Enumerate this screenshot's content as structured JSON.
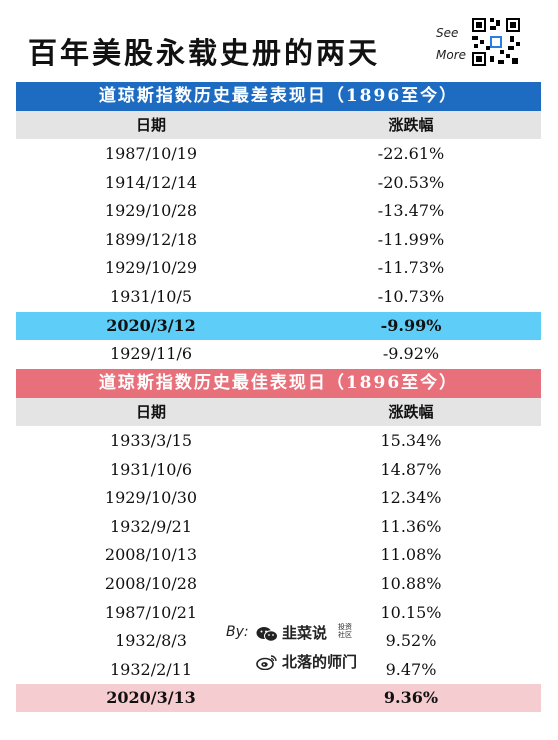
{
  "title": "百年美股永载史册的两天",
  "see_more": {
    "line1": "See",
    "line2": "More"
  },
  "worst": {
    "header": "道琼斯指数历史最差表现日（1896至今）",
    "col_date": "日期",
    "col_change": "涨跌幅",
    "rows": [
      {
        "date": "1987/10/19",
        "change": "-22.61%"
      },
      {
        "date": "1914/12/14",
        "change": "-20.53%"
      },
      {
        "date": "1929/10/28",
        "change": "-13.47%"
      },
      {
        "date": "1899/12/18",
        "change": "-11.99%"
      },
      {
        "date": "1929/10/29",
        "change": "-11.73%"
      },
      {
        "date": "1931/10/5",
        "change": "-10.73%"
      },
      {
        "date": "2020/3/12",
        "change": "-9.99%",
        "highlight": true
      },
      {
        "date": "1929/11/6",
        "change": "-9.92%"
      }
    ],
    "color": "#1d6cc2",
    "highlight_color": "#5ecdf7"
  },
  "best": {
    "header": "道琼斯指数历史最佳表现日（1896至今）",
    "col_date": "日期",
    "col_change": "涨跌幅",
    "rows": [
      {
        "date": "1933/3/15",
        "change": "15.34%"
      },
      {
        "date": "1931/10/6",
        "change": "14.87%"
      },
      {
        "date": "1929/10/30",
        "change": "12.34%"
      },
      {
        "date": "1932/9/21",
        "change": "11.36%"
      },
      {
        "date": "2008/10/13",
        "change": "11.08%"
      },
      {
        "date": "2008/10/28",
        "change": "10.88%"
      },
      {
        "date": "1987/10/21",
        "change": "10.15%"
      },
      {
        "date": "1932/8/3",
        "change": "9.52%"
      },
      {
        "date": "1932/2/11",
        "change": "9.47%"
      },
      {
        "date": "2020/3/13",
        "change": "9.36%",
        "highlight": true
      }
    ],
    "color": "#e8707a",
    "highlight_color": "#f5cdd0"
  },
  "credit": {
    "by": "By:",
    "wechat_name": "韭菜说",
    "wechat_sub": "投资社区",
    "weibo_name": "北落的师门",
    "wechat_icon": "wechat-icon",
    "weibo_icon": "weibo-icon"
  }
}
